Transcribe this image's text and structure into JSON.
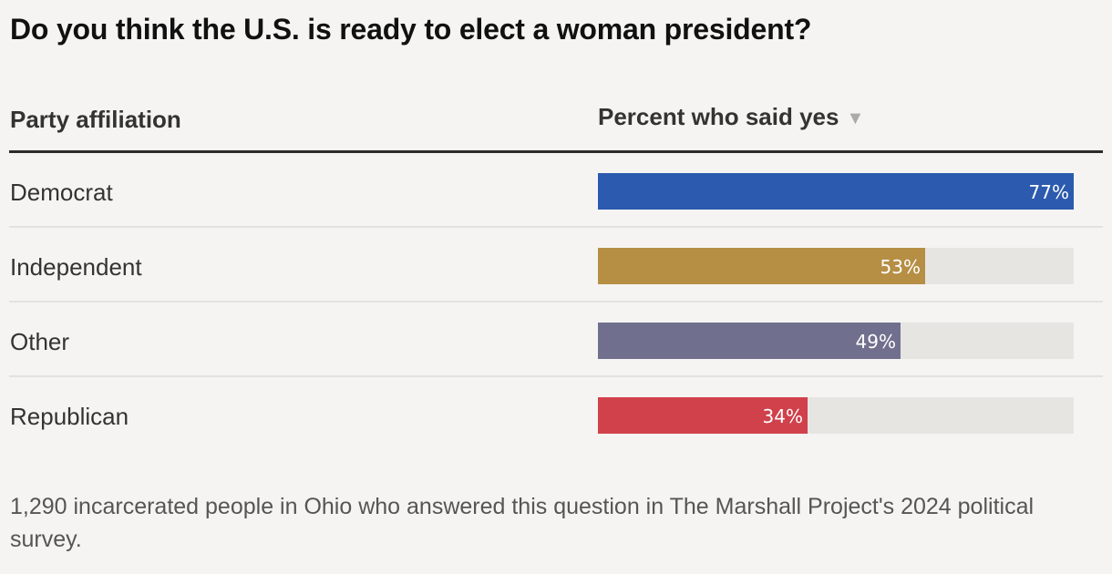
{
  "title": "Do you think the U.S. is ready to elect a woman president?",
  "table": {
    "col_label": "Party affiliation",
    "col_value": "Percent who said yes",
    "sort_icon": "▼"
  },
  "chart_data": {
    "type": "bar",
    "orientation": "horizontal",
    "categories": [
      "Democrat",
      "Independent",
      "Other",
      "Republican"
    ],
    "values": [
      77,
      53,
      49,
      34
    ],
    "value_labels": [
      "77%",
      "53%",
      "49%",
      "34%"
    ],
    "colors": [
      "#2b5aae",
      "#b68f45",
      "#70708e",
      "#d0414b"
    ],
    "xlim": [
      0,
      77
    ]
  },
  "footnote": "1,290 incarcerated people in Ohio who answered this question in The Marshall Project's 2024 political survey."
}
